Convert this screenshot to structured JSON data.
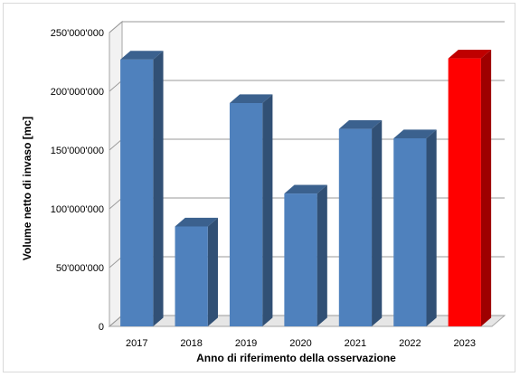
{
  "chart_data": {
    "type": "bar",
    "title": "",
    "xlabel": "Anno di riferimento della osservazione",
    "ylabel": "Volume netto di invaso [mc]",
    "categories": [
      "2017",
      "2018",
      "2019",
      "2020",
      "2021",
      "2022",
      "2023"
    ],
    "values": [
      227000000,
      85000000,
      190000000,
      113000000,
      168000000,
      160000000,
      228000000
    ],
    "ylim": [
      0,
      250000000
    ],
    "yticks": [
      0,
      50000000,
      100000000,
      150000000,
      200000000,
      250000000
    ],
    "ytick_labels": [
      "0",
      "50'000'000",
      "100'000'000",
      "150'000'000",
      "200'000'000",
      "250'000'000"
    ],
    "grid": true,
    "style": "3d-column",
    "colors": {
      "default_bar": "#4f81bd",
      "highlight_bar": "#ff0000",
      "gridline": "#999999"
    },
    "highlight_index": 6
  }
}
